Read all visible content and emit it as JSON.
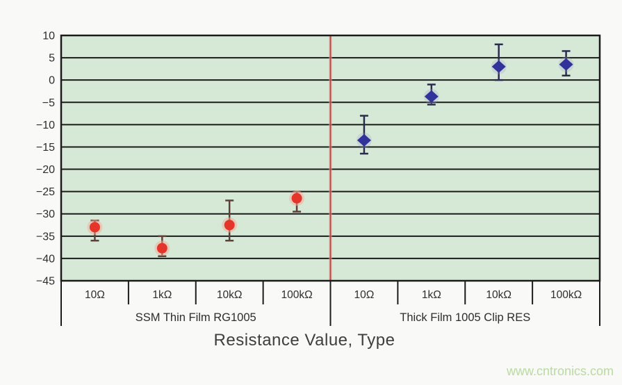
{
  "watermark": {
    "text": "www.cntronics.com",
    "color": "#b9dba2"
  },
  "chart_data": {
    "type": "scatter",
    "title": "",
    "xlabel": "Resistance Value, Type",
    "ylabel": "",
    "ylim": [
      -45,
      10
    ],
    "yticks": [
      10,
      5,
      0,
      -5,
      -10,
      -15,
      -20,
      -25,
      -30,
      -35,
      -40,
      -45
    ],
    "grid": true,
    "grid_color": "#1b1b1b",
    "plot_bg": "#d6e9d6",
    "text_color": "#2d2d2d",
    "divider_color": "#c84040",
    "divider_glow": "#e8a9a0",
    "groups": [
      {
        "label": "SSM Thin Film RG1005",
        "categories": [
          "10Ω",
          "1kΩ",
          "10kΩ",
          "100kΩ"
        ]
      },
      {
        "label": "Thick Film 1005 Clip RES",
        "categories": [
          "10Ω",
          "1kΩ",
          "10kΩ",
          "100kΩ"
        ]
      }
    ],
    "series": [
      {
        "name": "SSM Thin Film RG1005",
        "marker": "circle",
        "color": "#e5352b",
        "halo": "#f5ab9b",
        "whisker_color": "#5f4038",
        "points": [
          {
            "category": "10Ω",
            "value": -33.0,
            "err_high": -31.5,
            "err_low": -36.0
          },
          {
            "category": "1kΩ",
            "value": -37.7,
            "err_high": -35.0,
            "err_low": -39.5
          },
          {
            "category": "10kΩ",
            "value": -32.5,
            "err_high": -27.0,
            "err_low": -36.0
          },
          {
            "category": "100kΩ",
            "value": -26.5,
            "err_high": -25.0,
            "err_low": -29.5
          }
        ]
      },
      {
        "name": "Thick Film 1005 Clip RES",
        "marker": "diamond",
        "color": "#32329b",
        "halo": "#9a9ad0",
        "whisker_color": "#2b2b4e",
        "points": [
          {
            "category": "10Ω",
            "value": -13.5,
            "err_high": -8.0,
            "err_low": -16.5
          },
          {
            "category": "1kΩ",
            "value": -3.7,
            "err_high": -1.0,
            "err_low": -5.5
          },
          {
            "category": "10kΩ",
            "value": 3.0,
            "err_high": 8.0,
            "err_low": 0.0
          },
          {
            "category": "100kΩ",
            "value": 3.5,
            "err_high": 6.5,
            "err_low": 1.0
          }
        ]
      }
    ]
  }
}
